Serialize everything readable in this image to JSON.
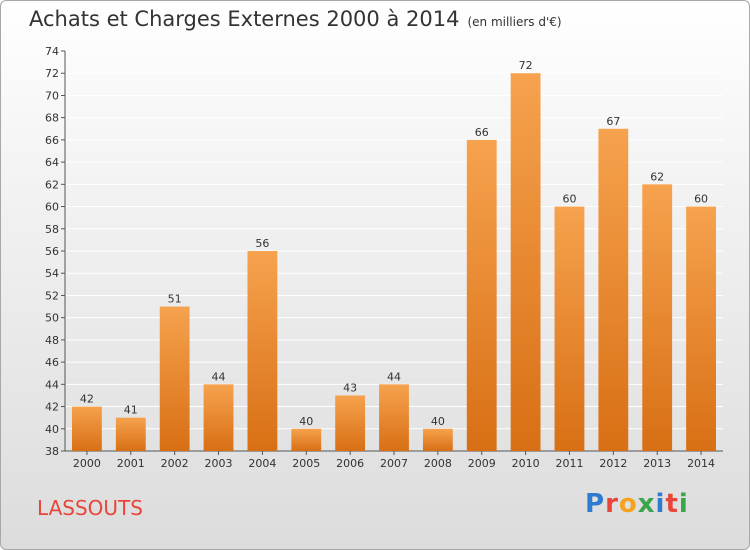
{
  "chart_data": {
    "type": "bar",
    "title": "Achats et Charges Externes 2000 à 2014",
    "subtitle": "(en milliers d'€)",
    "categories": [
      "2000",
      "2001",
      "2002",
      "2003",
      "2004",
      "2005",
      "2006",
      "2007",
      "2008",
      "2009",
      "2010",
      "2011",
      "2012",
      "2013",
      "2014"
    ],
    "values": [
      42,
      41,
      51,
      44,
      56,
      40,
      43,
      44,
      40,
      66,
      72,
      60,
      67,
      62,
      60
    ],
    "ylim": [
      38,
      74
    ],
    "yticks": [
      38,
      40,
      42,
      44,
      46,
      48,
      50,
      52,
      54,
      56,
      58,
      60,
      62,
      64,
      66,
      68,
      70,
      72,
      74
    ],
    "grid": true,
    "colors": {
      "bar_light": "#f6a24e",
      "bar_dark": "#d86f14",
      "grid": "#ffffff"
    }
  },
  "place_name": "LASSOUTS",
  "logo": {
    "letters": [
      "P",
      "r",
      "o",
      "x",
      "i",
      "t",
      "i"
    ],
    "colors": [
      "#2e7bd0",
      "#e8463a",
      "#f4a31f",
      "#3aa64a",
      "#2e7bd0",
      "#e8463a",
      "#3aa64a"
    ]
  }
}
